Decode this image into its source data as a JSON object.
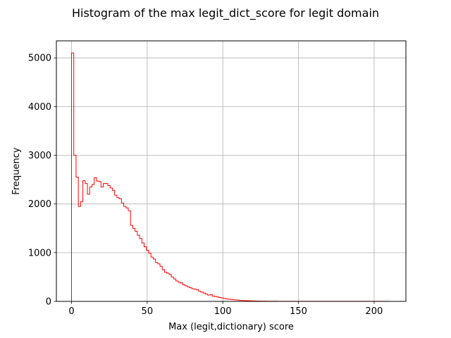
{
  "chart_data": {
    "type": "bar",
    "histtype": "step",
    "title": "Histogram of the max legit_dict_score for legit domain",
    "xlabel": "Max (legit,dictionary) score",
    "ylabel": "Frequency",
    "xlim": [
      -10,
      221
    ],
    "ylim": [
      0,
      5350
    ],
    "xticks": [
      0,
      50,
      100,
      150,
      200
    ],
    "yticks": [
      0,
      1000,
      2000,
      3000,
      4000,
      5000
    ],
    "grid": true,
    "color": "#ff0000",
    "bin_width": 1.5,
    "x_start": 0,
    "values": [
      5100,
      3000,
      2550,
      1950,
      2050,
      2480,
      2420,
      2200,
      2350,
      2400,
      2540,
      2470,
      2460,
      2350,
      2420,
      2420,
      2380,
      2330,
      2280,
      2180,
      2130,
      2110,
      2020,
      1950,
      1920,
      1860,
      1560,
      1500,
      1440,
      1360,
      1290,
      1200,
      1120,
      1050,
      990,
      910,
      870,
      800,
      770,
      720,
      650,
      600,
      580,
      550,
      500,
      460,
      420,
      390,
      380,
      340,
      320,
      300,
      280,
      260,
      250,
      240,
      210,
      190,
      170,
      150,
      130,
      140,
      110,
      100,
      90,
      80,
      70,
      60,
      50,
      45,
      40,
      35,
      30,
      25,
      20,
      18,
      16,
      14,
      12,
      10,
      9,
      8,
      7,
      6,
      5,
      5,
      4,
      4,
      3,
      3,
      3,
      2,
      2,
      2,
      2,
      1,
      1,
      1,
      1,
      1,
      1,
      1,
      1,
      1,
      1,
      1,
      1,
      1,
      1,
      1,
      1,
      1,
      1,
      1,
      1,
      1,
      1,
      1,
      1,
      1,
      1,
      1,
      1,
      1,
      1,
      1,
      1,
      1,
      1,
      1,
      1,
      1,
      1,
      1,
      1,
      1,
      1,
      1,
      1,
      1
    ]
  }
}
